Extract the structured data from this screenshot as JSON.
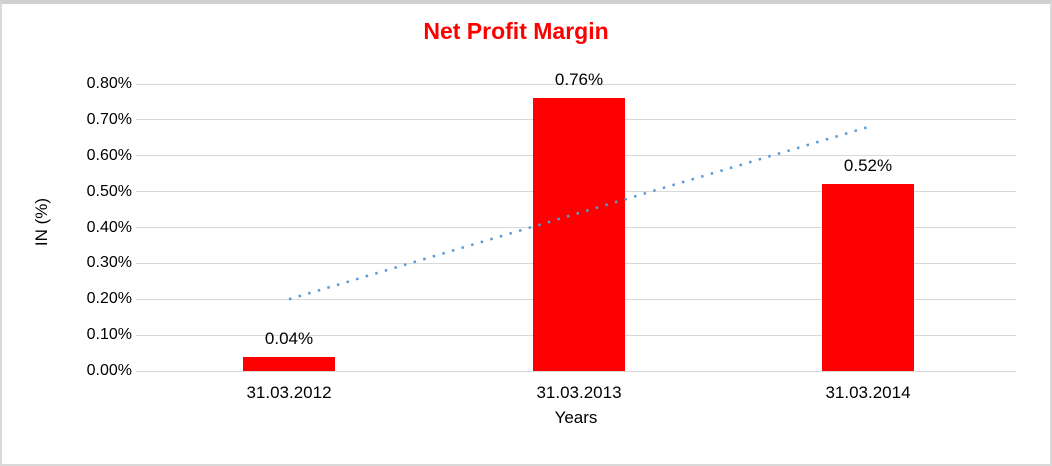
{
  "chart_data": {
    "type": "bar",
    "title": "Net Profit Margin",
    "title_color": "#ff0000",
    "categories": [
      "31.03.2012",
      "31.03.2013",
      "31.03.2014"
    ],
    "values": [
      0.04,
      0.76,
      0.52
    ],
    "data_labels": [
      "0.04%",
      "0.76%",
      "0.52%"
    ],
    "xlabel": "Years",
    "ylabel": "IN (%)",
    "ylim": [
      0.0,
      0.8
    ],
    "ytick_step": 0.1,
    "ytick_labels": [
      "0.00%",
      "0.10%",
      "0.20%",
      "0.30%",
      "0.40%",
      "0.50%",
      "0.60%",
      "0.70%",
      "0.80%"
    ],
    "grid": true,
    "legend": "none",
    "bar_color": "#ff0000",
    "gridline_color": "#d9d9d9",
    "trendline": {
      "type": "linear",
      "style": "dotted",
      "color": "#5b9bd5",
      "start_value": 0.2,
      "end_value": 0.68
    }
  }
}
